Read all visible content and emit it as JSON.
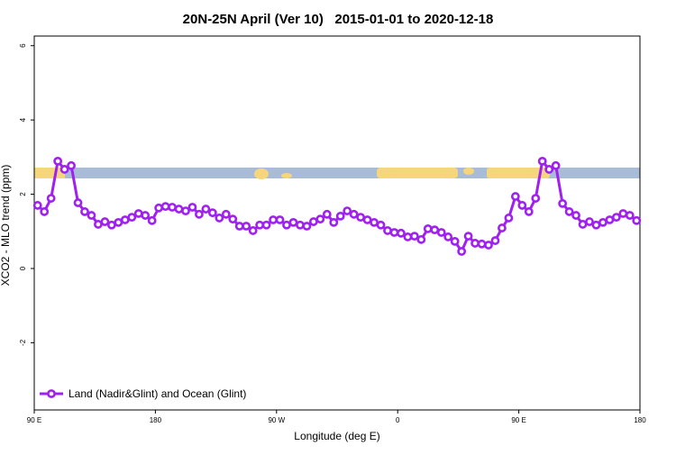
{
  "chart_data": {
    "type": "line",
    "title": "20N-25N April (Ver 10)   2015-01-01 to 2020-12-18",
    "x_label": "Longitude (deg E)",
    "y_label": "XCO2 - MLO trend (ppm)",
    "x": [
      92.5,
      97.5,
      102.5,
      107.5,
      112.5,
      117.5,
      122.5,
      127.5,
      132.5,
      137.5,
      142.5,
      147.5,
      152.5,
      157.5,
      162.5,
      167.5,
      172.5,
      177.5,
      182.5,
      187.5,
      192.5,
      197.5,
      202.5,
      207.5,
      212.5,
      217.5,
      222.5,
      227.5,
      232.5,
      237.5,
      242.5,
      247.5,
      252.5,
      257.5,
      262.5,
      267.5,
      272.5,
      277.5,
      282.5,
      287.5,
      292.5,
      297.5,
      302.5,
      307.5,
      312.5,
      317.5,
      322.5,
      327.5,
      332.5,
      337.5,
      342.5,
      347.5,
      352.5,
      357.5,
      362.5,
      367.5,
      372.5,
      377.5,
      382.5,
      387.5,
      392.5,
      397.5,
      402.5,
      407.5,
      412.5,
      417.5,
      422.5,
      427.5,
      432.5,
      437.5,
      442.5,
      447.5,
      452.5,
      457.5,
      462.5,
      467.5,
      472.5,
      477.5,
      482.5,
      487.5,
      492.5,
      497.5,
      502.5,
      507.5,
      512.5,
      517.5,
      522.5,
      527.5,
      532.5,
      537.5
    ],
    "series": [
      {
        "name": "Land (Nadir&Glint) and Ocean (Glint)",
        "color": "#a020f0",
        "values": [
          1.7,
          1.53,
          1.89,
          2.89,
          2.67,
          2.77,
          1.77,
          1.53,
          1.43,
          1.19,
          1.26,
          1.17,
          1.24,
          1.31,
          1.38,
          1.48,
          1.43,
          1.29,
          1.63,
          1.67,
          1.65,
          1.6,
          1.55,
          1.65,
          1.46,
          1.6,
          1.5,
          1.36,
          1.46,
          1.33,
          1.14,
          1.14,
          1.02,
          1.17,
          1.17,
          1.31,
          1.31,
          1.17,
          1.24,
          1.17,
          1.14,
          1.26,
          1.33,
          1.46,
          1.24,
          1.41,
          1.55,
          1.46,
          1.38,
          1.31,
          1.24,
          1.17,
          1.02,
          0.97,
          0.95,
          0.85,
          0.87,
          0.78,
          1.07,
          1.04,
          0.97,
          0.85,
          0.73,
          0.46,
          0.87,
          0.68,
          0.66,
          0.63,
          0.75,
          1.09,
          1.36,
          1.94,
          1.7,
          1.53,
          1.89,
          2.89,
          2.67,
          2.77,
          1.75,
          1.53,
          1.43,
          1.19,
          1.26,
          1.17,
          1.24,
          1.31,
          1.38,
          1.48,
          1.43,
          1.29
        ]
      }
    ],
    "xlim": [
      90,
      540
    ],
    "xticks": [
      {
        "value": 90,
        "label": "90 E"
      },
      180,
      {
        "value": 270,
        "label": "90 W"
      },
      {
        "value": 360,
        "label": "0"
      },
      {
        "value": 450,
        "label": "90 E"
      },
      {
        "value": 540,
        "label": "180"
      }
    ],
    "ylim": [
      -3.81,
      6.26
    ],
    "yticks": [
      -2,
      0,
      2,
      4,
      6
    ],
    "legend": "bottom-left"
  }
}
